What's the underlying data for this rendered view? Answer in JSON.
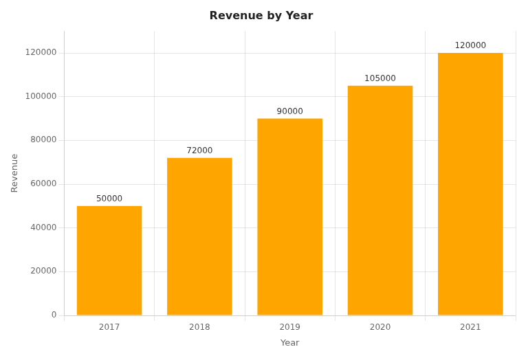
{
  "chart_data": {
    "type": "bar",
    "title": "Revenue by Year",
    "xlabel": "Year",
    "ylabel": "Revenue",
    "categories": [
      "2017",
      "2018",
      "2019",
      "2020",
      "2021"
    ],
    "values": [
      50000,
      72000,
      90000,
      105000,
      120000
    ],
    "color": "#FFA500",
    "ylim": [
      0,
      130000
    ],
    "yticks": [
      0,
      20000,
      40000,
      60000,
      80000,
      100000,
      120000
    ],
    "grid": true,
    "data_labels": true
  }
}
